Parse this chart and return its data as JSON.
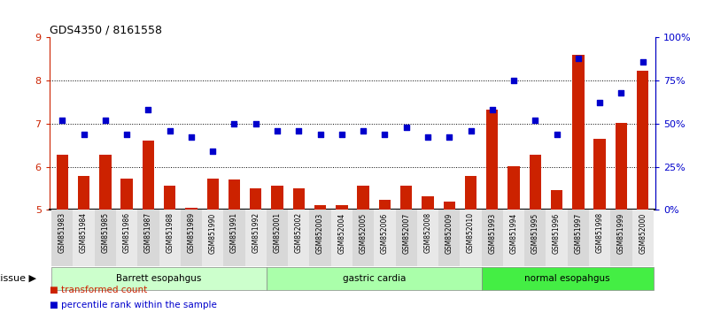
{
  "title": "GDS4350 / 8161558",
  "samples": [
    "GSM851983",
    "GSM851984",
    "GSM851985",
    "GSM851986",
    "GSM851987",
    "GSM851988",
    "GSM851989",
    "GSM851990",
    "GSM851991",
    "GSM851992",
    "GSM852001",
    "GSM852002",
    "GSM852003",
    "GSM852004",
    "GSM852005",
    "GSM852006",
    "GSM852007",
    "GSM852008",
    "GSM852009",
    "GSM852010",
    "GSM851993",
    "GSM851994",
    "GSM851995",
    "GSM851996",
    "GSM851997",
    "GSM851998",
    "GSM851999",
    "GSM852000"
  ],
  "bar_values": [
    6.28,
    5.78,
    6.28,
    5.72,
    6.6,
    5.55,
    5.05,
    5.72,
    5.7,
    5.5,
    5.55,
    5.5,
    5.1,
    5.1,
    5.55,
    5.22,
    5.55,
    5.32,
    5.18,
    5.78,
    7.32,
    6.02,
    6.28,
    5.45,
    8.6,
    6.65,
    7.02,
    8.22
  ],
  "dot_values": [
    52,
    44,
    52,
    44,
    58,
    46,
    42,
    34,
    50,
    50,
    46,
    46,
    44,
    44,
    46,
    44,
    48,
    42,
    42,
    46,
    58,
    75,
    52,
    44,
    88,
    62,
    68,
    86
  ],
  "groups": [
    {
      "label": "Barrett esopahgus",
      "start": 0,
      "end": 10,
      "color": "#ccffcc"
    },
    {
      "label": "gastric cardia",
      "start": 10,
      "end": 20,
      "color": "#aaffaa"
    },
    {
      "label": "normal esopahgus",
      "start": 20,
      "end": 28,
      "color": "#44ee44"
    }
  ],
  "ylim_left": [
    5,
    9
  ],
  "ylim_right": [
    0,
    100
  ],
  "yticks_left": [
    5,
    6,
    7,
    8,
    9
  ],
  "yticks_right": [
    0,
    25,
    50,
    75,
    100
  ],
  "bar_color": "#cc2200",
  "dot_color": "#0000cc",
  "grid_color": "#000000",
  "bg_color": "#ffffff",
  "axis_color_left": "#cc2200",
  "axis_color_right": "#0000cc",
  "legend_items": [
    {
      "label": "transformed count",
      "color": "#cc2200"
    },
    {
      "label": "percentile rank within the sample",
      "color": "#0000cc"
    }
  ],
  "tick_bg_even": "#d8d8d8",
  "tick_bg_odd": "#e8e8e8"
}
